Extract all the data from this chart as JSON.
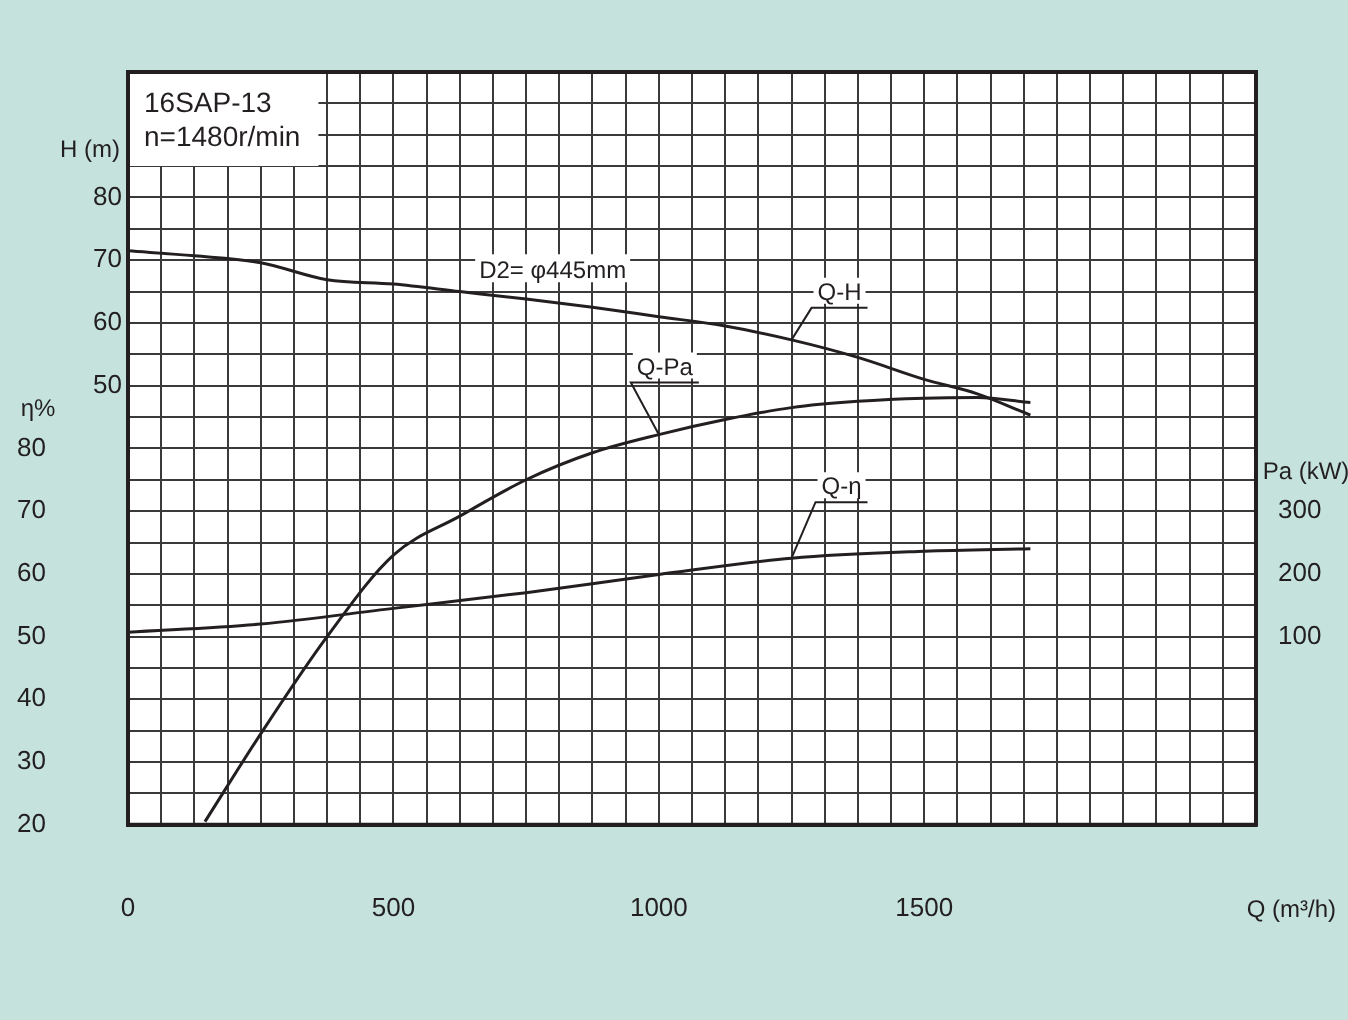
{
  "chart_data": {
    "type": "line",
    "title": "16SAP-13",
    "subtitle": "n=1480r/min",
    "xlabel": "Q (m³/h)",
    "ylabel": "H (m)",
    "y2label": "η%",
    "y3label": "Pa (kW)",
    "annotations": [
      {
        "text": "D2= φ445mm",
        "x": 800,
        "y": 63.3
      }
    ],
    "xlim": [
      0,
      2125
    ],
    "xticks": [
      0,
      {
        "value": 62.5,
        "label": null
      },
      {
        "value": 125,
        "label": null
      },
      {
        "value": 187.5,
        "label": null
      },
      {
        "value": 250,
        "label": null
      },
      {
        "value": 312.5,
        "label": null
      },
      {
        "value": 375,
        "label": null
      },
      {
        "value": 437.5,
        "label": null
      },
      500,
      {
        "value": 562.5,
        "label": null
      },
      {
        "value": 625,
        "label": null
      },
      {
        "value": 687.5,
        "label": null
      },
      {
        "value": 750,
        "label": null
      },
      {
        "value": 812.5,
        "label": null
      },
      {
        "value": 875,
        "label": null
      },
      {
        "value": 937.5,
        "label": null
      },
      1000,
      {
        "value": 1062.5,
        "label": null
      },
      {
        "value": 1125,
        "label": null
      },
      {
        "value": 1187.5,
        "label": null
      },
      {
        "value": 1250,
        "label": null
      },
      {
        "value": 1312.5,
        "label": null
      },
      {
        "value": 1375,
        "label": null
      },
      {
        "value": 1437.5,
        "label": null
      },
      1500,
      {
        "value": 1562.5,
        "label": null
      },
      {
        "value": 1625,
        "label": null
      },
      {
        "value": 1687.5,
        "label": null
      },
      {
        "value": 1750,
        "label": null
      },
      {
        "value": 1812.5,
        "label": null
      },
      {
        "value": 1875,
        "label": null
      },
      {
        "value": 1937.5,
        "label": null
      },
      {
        "value": 2000,
        "label": null
      },
      {
        "value": 2062.5,
        "label": null
      },
      {
        "value": 2125,
        "label": null
      }
    ],
    "ylim": [
      -20,
      100
    ],
    "yticks": [
      {
        "value": -20,
        "label": null
      },
      {
        "value": -15,
        "label": null
      },
      {
        "value": -10,
        "label": null
      },
      {
        "value": -5,
        "label": null
      },
      {
        "value": 0,
        "label": null
      },
      {
        "value": 5,
        "label": null
      },
      {
        "value": 10,
        "label": null
      },
      {
        "value": 15,
        "label": null
      },
      {
        "value": 20,
        "label": null
      },
      {
        "value": 25,
        "label": null
      },
      {
        "value": 30,
        "label": null
      },
      {
        "value": 35,
        "label": null
      },
      {
        "value": 40,
        "label": null
      },
      {
        "value": 45,
        "label": null
      },
      50,
      {
        "value": 55,
        "label": null
      },
      60,
      {
        "value": 65,
        "label": null
      },
      70,
      {
        "value": 75,
        "label": null
      },
      80,
      {
        "value": 85,
        "label": null
      },
      {
        "value": 90,
        "label": null
      },
      {
        "value": 95,
        "label": null
      },
      {
        "value": 100,
        "label": null
      }
    ],
    "y2lim": [
      20,
      140
    ],
    "y2ticks": [
      20,
      30,
      40,
      50,
      60,
      70,
      80
    ],
    "y3lim": [
      -200,
      1000
    ],
    "y3ticks": [
      100,
      200,
      300
    ],
    "grid": true,
    "legend": false,
    "marker": "none",
    "line_style": "solid",
    "series": [
      {
        "name": "Q-H",
        "color": "#231f20",
        "axis": "y",
        "x": [
          0,
          125,
          250,
          375,
          500,
          625,
          750,
          875,
          1000,
          1125,
          1250,
          1375,
          1500,
          1600,
          1700
        ],
        "values": [
          71.5,
          70.7,
          69.6,
          66.9,
          66.2,
          65,
          63.8,
          62.5,
          61,
          59.5,
          57.3,
          54.5,
          51,
          48.7,
          45.3
        ]
      },
      {
        "name": "Q-Pa",
        "color": "#231f20",
        "axis": "y3",
        "x": [
          145,
          250,
          375,
          500,
          625,
          750,
          875,
          1000,
          1125,
          1250,
          1375,
          1500,
          1600,
          1700
        ],
        "values": [
          -195,
          -55,
          100,
          230,
          292,
          350,
          393,
          422,
          446,
          465,
          475,
          480,
          481,
          473
        ]
      },
      {
        "name": "Q-η",
        "color": "#231f20",
        "axis": "y2",
        "x": [
          0,
          250,
          500,
          750,
          1000,
          1250,
          1500,
          1700
        ],
        "values": [
          50.7,
          52,
          54.5,
          57,
          59.9,
          62.5,
          63.6,
          64
        ]
      }
    ]
  }
}
